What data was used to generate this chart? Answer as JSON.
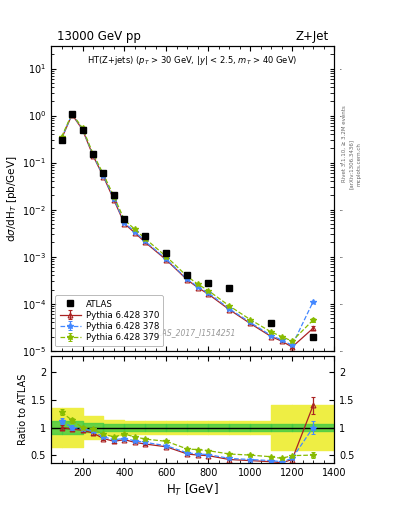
{
  "title_left": "13000 GeV pp",
  "title_right": "Z+Jet",
  "annotation": "HT(Z+jets) (p_{T} > 30 GeV, |y| < 2.5, m_{T} > 40 GeV)",
  "watermark": "ATLAS_2017_I1514251",
  "xlabel": "H_{T} [GeV]",
  "ylabel_main": "dσ/dH_{T} [pb/GeV]",
  "ylabel_ratio": "Ratio to ATLAS",
  "rivet_label": "Rivet 3.1.10, ≥ 3.2M events",
  "arxiv_label": "[arXiv:1306.3436]",
  "mcplots_label": "mcplots.cern.ch",
  "atlas_x": [
    100,
    150,
    200,
    250,
    300,
    350,
    400,
    500,
    600,
    700,
    800,
    900,
    1100,
    1300
  ],
  "atlas_y": [
    0.3,
    1.1,
    0.5,
    0.15,
    0.06,
    0.02,
    0.0062,
    0.0028,
    0.0012,
    0.0004,
    0.00028,
    0.00022,
    3.8e-05,
    2e-05
  ],
  "py370_x": [
    100,
    150,
    200,
    250,
    300,
    350,
    400,
    450,
    500,
    600,
    700,
    750,
    800,
    900,
    1000,
    1100,
    1150,
    1200,
    1300
  ],
  "py370_y": [
    0.32,
    1.05,
    0.5,
    0.14,
    0.05,
    0.016,
    0.005,
    0.0032,
    0.002,
    0.00085,
    0.00032,
    0.00022,
    0.00016,
    7.5e-05,
    3.8e-05,
    2e-05,
    1.6e-05,
    1.2e-05,
    3e-05
  ],
  "py370_yerr": [
    0.01,
    0.03,
    0.01,
    0.004,
    0.0012,
    0.0004,
    0.00012,
    8e-05,
    5e-05,
    2.2e-05,
    9e-06,
    7e-06,
    5e-06,
    2.5e-06,
    1.5e-06,
    8e-07,
    6e-07,
    5e-07,
    3e-06
  ],
  "py378_x": [
    100,
    150,
    200,
    250,
    300,
    350,
    400,
    450,
    500,
    600,
    700,
    750,
    800,
    900,
    1000,
    1100,
    1150,
    1200,
    1300
  ],
  "py378_y": [
    0.33,
    1.08,
    0.52,
    0.145,
    0.052,
    0.017,
    0.0052,
    0.0034,
    0.0021,
    0.00088,
    0.00033,
    0.00023,
    0.00017,
    7.8e-05,
    4e-05,
    2.1e-05,
    1.7e-05,
    1.3e-05,
    0.00011
  ],
  "py378_yerr": [
    0.01,
    0.03,
    0.01,
    0.004,
    0.0012,
    0.0004,
    0.00012,
    8e-05,
    5e-05,
    2.2e-05,
    9e-06,
    7e-06,
    5e-06,
    2.5e-06,
    1.5e-06,
    9e-07,
    7e-07,
    5e-07,
    4e-06
  ],
  "py379_x": [
    100,
    150,
    200,
    250,
    300,
    350,
    400,
    450,
    500,
    600,
    700,
    750,
    800,
    900,
    1000,
    1100,
    1150,
    1200,
    1300
  ],
  "py379_y": [
    0.35,
    1.1,
    0.54,
    0.155,
    0.056,
    0.019,
    0.006,
    0.0038,
    0.0024,
    0.001,
    0.00038,
    0.00026,
    0.00019,
    9e-05,
    4.6e-05,
    2.5e-05,
    2e-05,
    1.6e-05,
    4.5e-05
  ],
  "py379_yerr": [
    0.015,
    0.035,
    0.012,
    0.005,
    0.0015,
    0.0005,
    0.00015,
    0.0001,
    6e-05,
    2.6e-05,
    1e-05,
    8e-06,
    6e-06,
    3e-06,
    1.8e-06,
    1e-06,
    8e-07,
    6e-07,
    5e-06
  ],
  "ratio370_x": [
    100,
    150,
    200,
    250,
    300,
    350,
    400,
    450,
    500,
    600,
    700,
    750,
    800,
    900,
    1000,
    1100,
    1150,
    1200,
    1300
  ],
  "ratio370_y": [
    1.0,
    0.97,
    0.95,
    0.9,
    0.8,
    0.75,
    0.78,
    0.73,
    0.7,
    0.65,
    0.52,
    0.5,
    0.49,
    0.42,
    0.4,
    0.38,
    0.36,
    0.42,
    1.4
  ],
  "ratio370_err": [
    0.05,
    0.04,
    0.03,
    0.03,
    0.025,
    0.022,
    0.02,
    0.018,
    0.016,
    0.014,
    0.012,
    0.011,
    0.01,
    0.009,
    0.008,
    0.007,
    0.006,
    0.008,
    0.15
  ],
  "ratio378_x": [
    100,
    150,
    200,
    250,
    300,
    350,
    400,
    450,
    500,
    600,
    700,
    750,
    800,
    900,
    1000,
    1100,
    1150,
    1200,
    1300
  ],
  "ratio378_y": [
    1.12,
    1.0,
    0.98,
    0.93,
    0.83,
    0.78,
    0.8,
    0.76,
    0.73,
    0.67,
    0.54,
    0.52,
    0.51,
    0.44,
    0.42,
    0.4,
    0.38,
    0.44,
    1.0
  ],
  "ratio378_err": [
    0.05,
    0.04,
    0.03,
    0.03,
    0.025,
    0.022,
    0.02,
    0.018,
    0.016,
    0.014,
    0.012,
    0.011,
    0.01,
    0.009,
    0.008,
    0.007,
    0.006,
    0.008,
    0.12
  ],
  "ratio379_x": [
    100,
    150,
    200,
    250,
    300,
    350,
    400,
    450,
    500,
    600,
    700,
    750,
    800,
    900,
    1000,
    1100,
    1150,
    1200,
    1300
  ],
  "ratio379_y": [
    1.28,
    1.13,
    1.0,
    0.97,
    0.88,
    0.83,
    0.88,
    0.83,
    0.79,
    0.75,
    0.61,
    0.6,
    0.58,
    0.52,
    0.5,
    0.47,
    0.44,
    0.49,
    0.5
  ],
  "ratio379_err": [
    0.06,
    0.04,
    0.03,
    0.03,
    0.025,
    0.022,
    0.02,
    0.018,
    0.016,
    0.014,
    0.012,
    0.011,
    0.01,
    0.009,
    0.008,
    0.007,
    0.006,
    0.008,
    0.06
  ],
  "band_x_edges": [
    50,
    100,
    200,
    300,
    400,
    500,
    600,
    700,
    800,
    900,
    1000,
    1100,
    1200,
    1400
  ],
  "band_green_lo": [
    0.88,
    0.88,
    0.92,
    0.93,
    0.93,
    0.93,
    0.93,
    0.93,
    0.93,
    0.93,
    0.93,
    0.93,
    0.93,
    0.93
  ],
  "band_green_hi": [
    1.12,
    1.12,
    1.08,
    1.07,
    1.07,
    1.07,
    1.07,
    1.07,
    1.07,
    1.07,
    1.07,
    1.07,
    1.07,
    1.07
  ],
  "band_yellow_lo": [
    0.65,
    0.65,
    0.8,
    0.87,
    0.88,
    0.88,
    0.88,
    0.88,
    0.88,
    0.88,
    0.88,
    0.6,
    0.6,
    0.6
  ],
  "band_yellow_hi": [
    1.35,
    1.35,
    1.2,
    1.13,
    1.12,
    1.12,
    1.12,
    1.12,
    1.12,
    1.12,
    1.12,
    1.4,
    1.4,
    1.7
  ],
  "color_atlas": "#000000",
  "color_py370": "#aa2222",
  "color_py378": "#4488ff",
  "color_py379": "#88bb00",
  "color_band_green": "#44cc44",
  "color_band_yellow": "#eeee44",
  "main_ylim_lo": 1e-05,
  "main_ylim_hi": 30,
  "ratio_ylim_lo": 0.35,
  "ratio_ylim_hi": 2.3,
  "xlim_lo": 50,
  "xlim_hi": 1400
}
